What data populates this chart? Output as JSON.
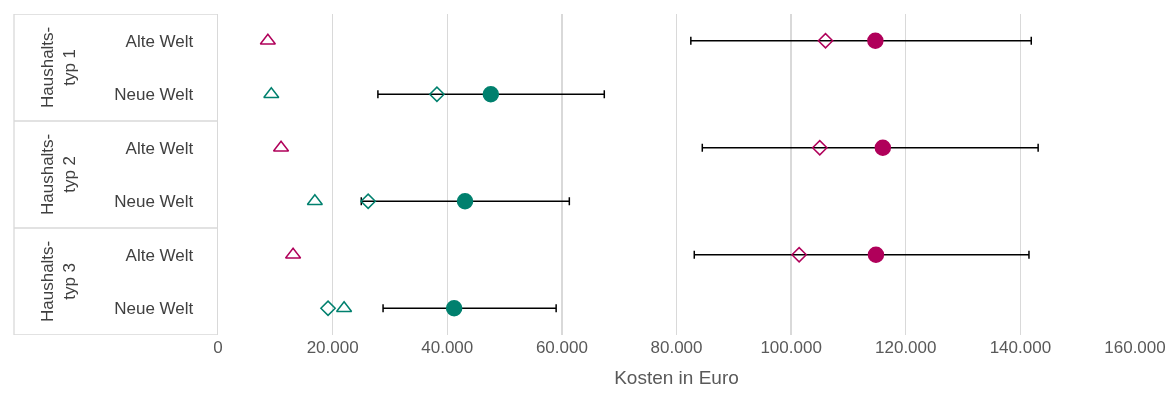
{
  "chart_data": {
    "type": "scatter",
    "orientation": "horizontal",
    "xlabel": "Kosten in Euro",
    "categories": [
      "Alte Welt",
      "Neue Welt",
      "Alte Welt",
      "Neue Welt",
      "Alte Welt",
      "Neue Welt"
    ],
    "annotations": [
      "Haushalts-typ 1",
      "Haushalts-typ 2",
      "Haushalts-typ 3"
    ],
    "series": [
      {
        "marker": "triangle",
        "colors": [
          "#b0005a",
          "#00806e",
          "#b0005a",
          "#00806e",
          "#b0005a",
          "#00806e"
        ],
        "values": [
          8700,
          9300,
          11000,
          16900,
          13100,
          22000
        ]
      },
      {
        "marker": "diamond",
        "colors": [
          "#b0005a",
          "#00806e",
          "#b0005a",
          "#00806e",
          "#b0005a",
          "#00806e"
        ],
        "values": [
          106000,
          38200,
          105000,
          26200,
          101400,
          19200
        ]
      },
      {
        "marker": "circle",
        "colors": [
          "#b0005a",
          "#00806e",
          "#b0005a",
          "#00806e",
          "#b0005a",
          "#00806e"
        ],
        "values": [
          114700,
          47600,
          116000,
          43100,
          114800,
          41200
        ],
        "errors": [
          [
            82500,
            141900
          ],
          [
            27900,
            67400
          ],
          [
            84500,
            143100
          ],
          [
            25000,
            61300
          ],
          [
            83100,
            141500
          ],
          [
            28800,
            59000
          ]
        ]
      }
    ],
    "xlim": [
      0,
      160000
    ],
    "xticks": [
      0,
      {
        "value": 20000,
        "label": "20.000"
      },
      {
        "value": 40000,
        "label": "40.000"
      },
      {
        "value": 60000,
        "label": "60.000"
      },
      {
        "value": 80000,
        "label": "80.000"
      },
      {
        "value": 100000,
        "label": "100.000"
      },
      {
        "value": 120000,
        "label": "120.000"
      },
      {
        "value": 140000,
        "label": "140.000"
      },
      {
        "value": 160000,
        "label": "160.000"
      }
    ],
    "grid": "x"
  }
}
